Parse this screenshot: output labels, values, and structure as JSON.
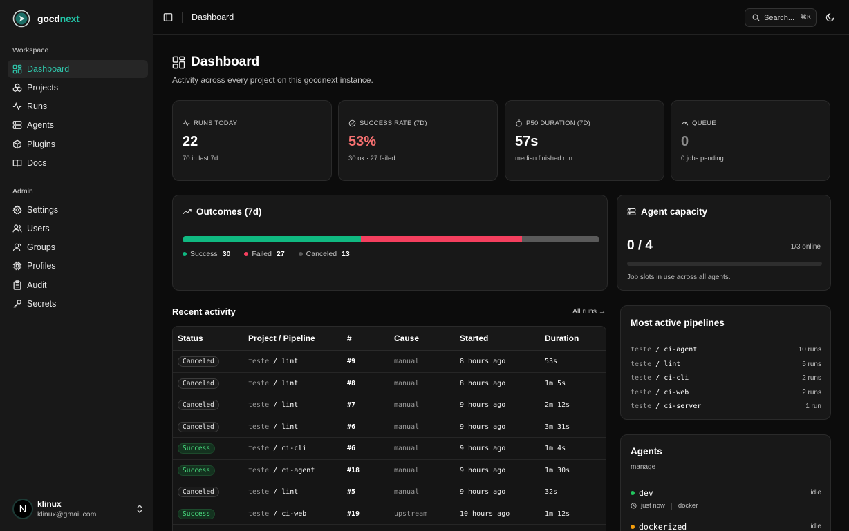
{
  "brand": {
    "name_main": "gocd",
    "name_accent": "next"
  },
  "sidebar": {
    "workspace_label": "Workspace",
    "workspace_items": [
      {
        "label": "Dashboard",
        "icon": "dashboard-icon",
        "active": true
      },
      {
        "label": "Projects",
        "icon": "projects-icon"
      },
      {
        "label": "Runs",
        "icon": "activity-icon"
      },
      {
        "label": "Agents",
        "icon": "server-icon"
      },
      {
        "label": "Plugins",
        "icon": "package-icon"
      },
      {
        "label": "Docs",
        "icon": "book-icon"
      }
    ],
    "admin_label": "Admin",
    "admin_items": [
      {
        "label": "Settings",
        "icon": "gear-icon"
      },
      {
        "label": "Users",
        "icon": "users-icon"
      },
      {
        "label": "Groups",
        "icon": "groups-icon"
      },
      {
        "label": "Profiles",
        "icon": "chip-icon"
      },
      {
        "label": "Audit",
        "icon": "clipboard-icon"
      },
      {
        "label": "Secrets",
        "icon": "key-icon"
      }
    ]
  },
  "user": {
    "initial": "N",
    "name": "klinux",
    "email": "klinux@gmail.com"
  },
  "topbar": {
    "title": "Dashboard",
    "search_label": "Search...",
    "search_kbd": "⌘K"
  },
  "page": {
    "title": "Dashboard",
    "subtitle": "Activity across every project on this gocdnext instance."
  },
  "stats": [
    {
      "label": "RUNS TODAY",
      "value": "22",
      "hint": "70 in last 7d",
      "icon": "activity-icon"
    },
    {
      "label": "SUCCESS RATE (7D)",
      "value": "53%",
      "hint": "30 ok · 27 failed",
      "icon": "check-circle-icon",
      "value_color": "#f87171"
    },
    {
      "label": "P50 DURATION (7D)",
      "value": "57s",
      "hint": "median finished run",
      "icon": "timer-icon"
    },
    {
      "label": "QUEUE",
      "value": "0",
      "hint": "0 jobs pending",
      "icon": "gauge-icon",
      "value_color": "#8a8a8a"
    }
  ],
  "outcomes": {
    "title": "Outcomes (7d)",
    "segments": [
      {
        "label": "Success",
        "count": 30,
        "color": "#10b981"
      },
      {
        "label": "Failed",
        "count": 27,
        "color": "#f43f5e"
      },
      {
        "label": "Canceled",
        "count": 13,
        "color": "#5a5a5a"
      }
    ]
  },
  "capacity": {
    "title": "Agent capacity",
    "value": "0 / 4",
    "online": "1/3 online",
    "used_fraction": 0,
    "hint": "Job slots in use across all agents."
  },
  "recent": {
    "title": "Recent activity",
    "all_runs": "All runs →",
    "headers": [
      "Status",
      "Project / Pipeline",
      "#",
      "Cause",
      "Started",
      "Duration"
    ],
    "rows": [
      {
        "status": "Canceled",
        "project": "teste",
        "pipeline": "lint",
        "num": "#9",
        "cause": "manual",
        "started": "8 hours ago",
        "duration": "53s"
      },
      {
        "status": "Canceled",
        "project": "teste",
        "pipeline": "lint",
        "num": "#8",
        "cause": "manual",
        "started": "8 hours ago",
        "duration": "1m 5s"
      },
      {
        "status": "Canceled",
        "project": "teste",
        "pipeline": "lint",
        "num": "#7",
        "cause": "manual",
        "started": "9 hours ago",
        "duration": "2m 12s"
      },
      {
        "status": "Canceled",
        "project": "teste",
        "pipeline": "lint",
        "num": "#6",
        "cause": "manual",
        "started": "9 hours ago",
        "duration": "3m 31s"
      },
      {
        "status": "Success",
        "project": "teste",
        "pipeline": "ci-cli",
        "num": "#6",
        "cause": "manual",
        "started": "9 hours ago",
        "duration": "1m 4s"
      },
      {
        "status": "Success",
        "project": "teste",
        "pipeline": "ci-agent",
        "num": "#18",
        "cause": "manual",
        "started": "9 hours ago",
        "duration": "1m 30s"
      },
      {
        "status": "Canceled",
        "project": "teste",
        "pipeline": "lint",
        "num": "#5",
        "cause": "manual",
        "started": "9 hours ago",
        "duration": "32s"
      },
      {
        "status": "Success",
        "project": "teste",
        "pipeline": "ci-web",
        "num": "#19",
        "cause": "upstream",
        "started": "10 hours ago",
        "duration": "1m 12s"
      }
    ]
  },
  "pipelines": {
    "title": "Most active pipelines",
    "items": [
      {
        "project": "teste",
        "pipeline": "ci-agent",
        "runs": "10 runs"
      },
      {
        "project": "teste",
        "pipeline": "lint",
        "runs": "5 runs"
      },
      {
        "project": "teste",
        "pipeline": "ci-cli",
        "runs": "2 runs"
      },
      {
        "project": "teste",
        "pipeline": "ci-web",
        "runs": "2 runs"
      },
      {
        "project": "teste",
        "pipeline": "ci-server",
        "runs": "1 run"
      }
    ]
  },
  "agents": {
    "title": "Agents",
    "manage": "manage",
    "items": [
      {
        "name": "dev",
        "state": "idle",
        "seen": "just now",
        "kind": "docker",
        "dot": "#22c55e"
      },
      {
        "name": "dockerized",
        "state": "idle",
        "dot": "#f59e0b"
      }
    ]
  }
}
